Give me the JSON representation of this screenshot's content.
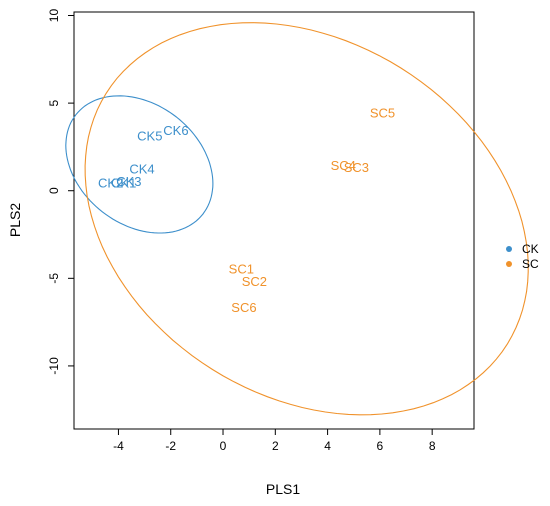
{
  "chart_data": {
    "type": "scatter",
    "xlabel": "PLS1",
    "ylabel": "PLS2",
    "xlim": [
      -5.7,
      9.6
    ],
    "ylim": [
      -13.6,
      10.2
    ],
    "xticks": [
      -4,
      -2,
      0,
      2,
      4,
      6,
      8
    ],
    "yticks": [
      -10,
      -5,
      0,
      5,
      10
    ],
    "legend_position": "right",
    "series": [
      {
        "name": "CK",
        "color": "#3d8fcb",
        "points": [
          {
            "label": "CK1",
            "x": -3.8,
            "y": 0.4
          },
          {
            "label": "CK2",
            "x": -4.3,
            "y": 0.4
          },
          {
            "label": "CK3",
            "x": -3.6,
            "y": 0.5
          },
          {
            "label": "CK4",
            "x": -3.1,
            "y": 1.2
          },
          {
            "label": "CK5",
            "x": -2.8,
            "y": 3.1
          },
          {
            "label": "CK6",
            "x": -1.8,
            "y": 3.4
          }
        ],
        "ellipse": {
          "cx": -3.2,
          "cy": 1.5,
          "rx_data": 2.3,
          "ry_data": 4.6,
          "angle_deg": 52
        }
      },
      {
        "name": "SC",
        "color": "#f0922b",
        "points": [
          {
            "label": "SC1",
            "x": 0.7,
            "y": -4.5
          },
          {
            "label": "SC2",
            "x": 1.2,
            "y": -5.2
          },
          {
            "label": "SC3",
            "x": 5.1,
            "y": 1.3
          },
          {
            "label": "SC4",
            "x": 4.6,
            "y": 1.4
          },
          {
            "label": "SC5",
            "x": 6.1,
            "y": 4.4
          },
          {
            "label": "SC6",
            "x": 0.8,
            "y": -6.7
          }
        ],
        "ellipse": {
          "cx": 3.2,
          "cy": -1.6,
          "rx_data": 6.8,
          "ry_data": 13.5,
          "angle_deg": 58
        }
      }
    ]
  }
}
